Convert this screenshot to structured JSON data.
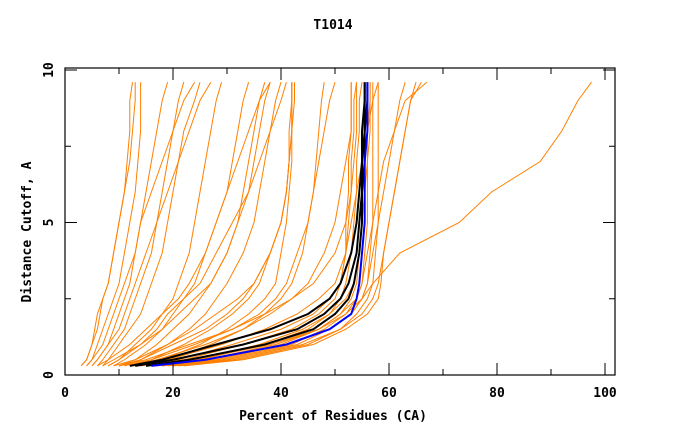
{
  "chart_data": {
    "type": "line",
    "title": "T1014",
    "xlabel": "Percent of Residues (CA)",
    "ylabel": "Distance Cutoff, A",
    "xlim": [
      0,
      102
    ],
    "ylim": [
      0,
      10
    ],
    "x_ticks": [
      "0",
      "20",
      "40",
      "60",
      "80",
      "100"
    ],
    "y_ticks": [
      "0",
      "5",
      "10"
    ],
    "grid": false,
    "colors": {
      "others": "#ff8000",
      "highlight": "#000000",
      "best": "#0000ff"
    },
    "y_levels": [
      0.3,
      0.5,
      1,
      1.5,
      2,
      2.5,
      3,
      4,
      5,
      6,
      7,
      8,
      9,
      9.6
    ],
    "series": [
      {
        "color": "others",
        "x": [
          3,
          4,
          5,
          6,
          6.5,
          7,
          8,
          9,
          10,
          11,
          11.5,
          12,
          12,
          12.5
        ]
      },
      {
        "color": "others",
        "x": [
          4,
          5,
          6,
          7,
          8,
          9,
          10,
          11,
          12,
          13,
          13.5,
          14,
          14,
          14
        ]
      },
      {
        "color": "others",
        "x": [
          5,
          6,
          8,
          9,
          10,
          11,
          12,
          13,
          14,
          15,
          16,
          17,
          18,
          19
        ]
      },
      {
        "color": "others",
        "x": [
          6,
          7,
          9,
          11,
          12,
          13,
          14,
          16,
          17,
          18,
          19,
          20,
          21,
          22
        ]
      },
      {
        "color": "others",
        "x": [
          7,
          8,
          10,
          12,
          14,
          15,
          16,
          18,
          19,
          20,
          21,
          22,
          24,
          25
        ]
      },
      {
        "color": "others",
        "x": [
          4,
          5,
          7,
          8,
          9,
          10,
          11,
          13,
          14,
          16,
          18,
          20,
          22,
          24
        ]
      },
      {
        "color": "others",
        "x": [
          8,
          10,
          13,
          16,
          18,
          20,
          21,
          23,
          24,
          25,
          26,
          27,
          28,
          29
        ]
      },
      {
        "color": "others",
        "x": [
          9,
          11,
          15,
          18,
          20,
          22,
          24,
          26,
          28,
          30,
          31,
          32,
          33,
          34
        ]
      },
      {
        "color": "others",
        "x": [
          10,
          13,
          17,
          20,
          23,
          25,
          27,
          30,
          32,
          33,
          34,
          35,
          36,
          37
        ]
      },
      {
        "color": "others",
        "x": [
          6,
          8,
          12,
          15,
          18,
          21,
          23,
          26,
          28,
          30,
          32,
          34,
          36,
          38
        ]
      },
      {
        "color": "others",
        "x": [
          11,
          14,
          19,
          23,
          26,
          28,
          30,
          33,
          35,
          36,
          37,
          38,
          39,
          40
        ]
      },
      {
        "color": "others",
        "x": [
          7,
          9,
          14,
          18,
          21,
          24,
          27,
          30,
          32,
          34,
          35,
          36,
          37,
          38
        ]
      },
      {
        "color": "others",
        "x": [
          12,
          16,
          22,
          27,
          31,
          34,
          36,
          38,
          40,
          41,
          41.5,
          42,
          42,
          42
        ]
      },
      {
        "color": "others",
        "x": [
          10,
          14,
          20,
          26,
          30,
          33,
          35,
          38,
          40,
          41,
          41.5,
          41.5,
          42,
          42
        ]
      },
      {
        "color": "others",
        "x": [
          13,
          18,
          25,
          30,
          34,
          37,
          39,
          40,
          41,
          41.5,
          42,
          42,
          42.5,
          42.5
        ]
      },
      {
        "color": "others",
        "x": [
          9,
          13,
          19,
          24,
          28,
          32,
          35,
          38,
          40,
          41,
          41.5,
          42,
          42,
          42
        ]
      },
      {
        "color": "others",
        "x": [
          14,
          19,
          27,
          33,
          37,
          40,
          42,
          44,
          45,
          46,
          46.5,
          47,
          47.5,
          48
        ]
      },
      {
        "color": "others",
        "x": [
          11,
          16,
          24,
          31,
          36,
          39,
          41,
          43,
          45,
          46,
          47,
          48,
          49,
          50
        ]
      },
      {
        "color": "others",
        "x": [
          15,
          22,
          33,
          42,
          47,
          50,
          51,
          52,
          52.5,
          53,
          53,
          53.5,
          53.5,
          54
        ]
      },
      {
        "color": "others",
        "x": [
          17,
          25,
          37,
          45,
          49,
          51,
          52,
          53,
          53.5,
          54,
          54,
          54.5,
          54.5,
          55
        ]
      },
      {
        "color": "others",
        "x": [
          18,
          27,
          40,
          47,
          51,
          53,
          54,
          54.5,
          55,
          55,
          55.5,
          55.5,
          56,
          56
        ]
      },
      {
        "color": "others",
        "x": [
          16,
          24,
          36,
          44,
          49,
          52,
          53.5,
          54.5,
          55,
          55.5,
          56,
          56,
          56.5,
          56.5
        ]
      },
      {
        "color": "others",
        "x": [
          20,
          30,
          43,
          49,
          53,
          55,
          56,
          56.5,
          57,
          57,
          57,
          57,
          57,
          57
        ]
      },
      {
        "color": "others",
        "x": [
          14,
          21,
          31,
          40,
          46,
          49,
          51,
          52,
          52,
          52.5,
          52.5,
          53,
          53,
          53
        ]
      },
      {
        "color": "others",
        "x": [
          19,
          29,
          42,
          48,
          52,
          54,
          55,
          55.5,
          56,
          56,
          56,
          56.5,
          56.5,
          56.5
        ]
      },
      {
        "color": "others",
        "x": [
          21,
          32,
          45,
          51,
          54,
          56,
          57,
          57.5,
          58,
          58,
          58,
          58,
          58,
          58
        ]
      },
      {
        "color": "others",
        "x": [
          18,
          28,
          41,
          49,
          53,
          55,
          56,
          57,
          58,
          59,
          60,
          61,
          62,
          63
        ]
      },
      {
        "color": "others",
        "x": [
          20,
          31,
          44,
          51,
          55,
          57,
          58,
          59,
          60,
          61,
          62,
          63,
          64,
          65
        ]
      },
      {
        "color": "others",
        "x": [
          22,
          33,
          46,
          52,
          56,
          58,
          58.5,
          59,
          60,
          61,
          62,
          63,
          64,
          66
        ]
      },
      {
        "color": "others",
        "x": [
          17,
          26,
          39,
          47,
          51,
          54,
          55,
          56,
          57,
          58,
          59,
          61,
          63,
          67
        ]
      },
      {
        "color": "others",
        "x": [
          15,
          24,
          38,
          47,
          52,
          55,
          57,
          62,
          73,
          79,
          88,
          92,
          95,
          97.5
        ]
      },
      {
        "color": "others",
        "x": [
          3,
          4,
          5,
          5.5,
          6,
          7,
          8,
          9,
          10,
          11,
          12,
          12.5,
          13,
          13
        ]
      },
      {
        "color": "others",
        "x": [
          5,
          6,
          8,
          10,
          11,
          12,
          13,
          15,
          17,
          19,
          21,
          23,
          25,
          27
        ]
      },
      {
        "color": "others",
        "x": [
          8,
          10,
          14,
          17,
          19,
          22,
          25,
          28,
          31,
          34,
          36,
          38,
          40,
          41
        ]
      },
      {
        "color": "others",
        "x": [
          12,
          17,
          26,
          33,
          38,
          42,
          45,
          48,
          50,
          51,
          52,
          53,
          53,
          53
        ]
      },
      {
        "color": "others",
        "x": [
          13,
          19,
          29,
          37,
          43,
          47,
          50,
          52,
          53,
          54,
          55,
          56,
          57,
          58
        ]
      },
      {
        "color": "others",
        "x": [
          10,
          15,
          23,
          31,
          37,
          42,
          46,
          50,
          52,
          53,
          53.5,
          54,
          54,
          54
        ]
      },
      {
        "color": "highlight",
        "x": [
          12,
          18,
          28,
          38,
          45,
          49,
          51,
          53,
          54,
          54.5,
          55,
          55,
          55.5,
          55.5
        ]
      },
      {
        "color": "highlight",
        "x": [
          13,
          20,
          33,
          43,
          48,
          51,
          52.5,
          54,
          54.5,
          55,
          55,
          55.5,
          55.5,
          55.5
        ]
      },
      {
        "color": "highlight",
        "x": [
          15,
          23,
          37,
          46,
          50,
          52.5,
          53.5,
          54.5,
          55,
          55,
          55.5,
          55.5,
          56,
          56
        ]
      },
      {
        "color": "best",
        "x": [
          16,
          26,
          41,
          49,
          53,
          54,
          54.5,
          55,
          55.5,
          55.5,
          55.5,
          56,
          56,
          56
        ]
      }
    ]
  }
}
